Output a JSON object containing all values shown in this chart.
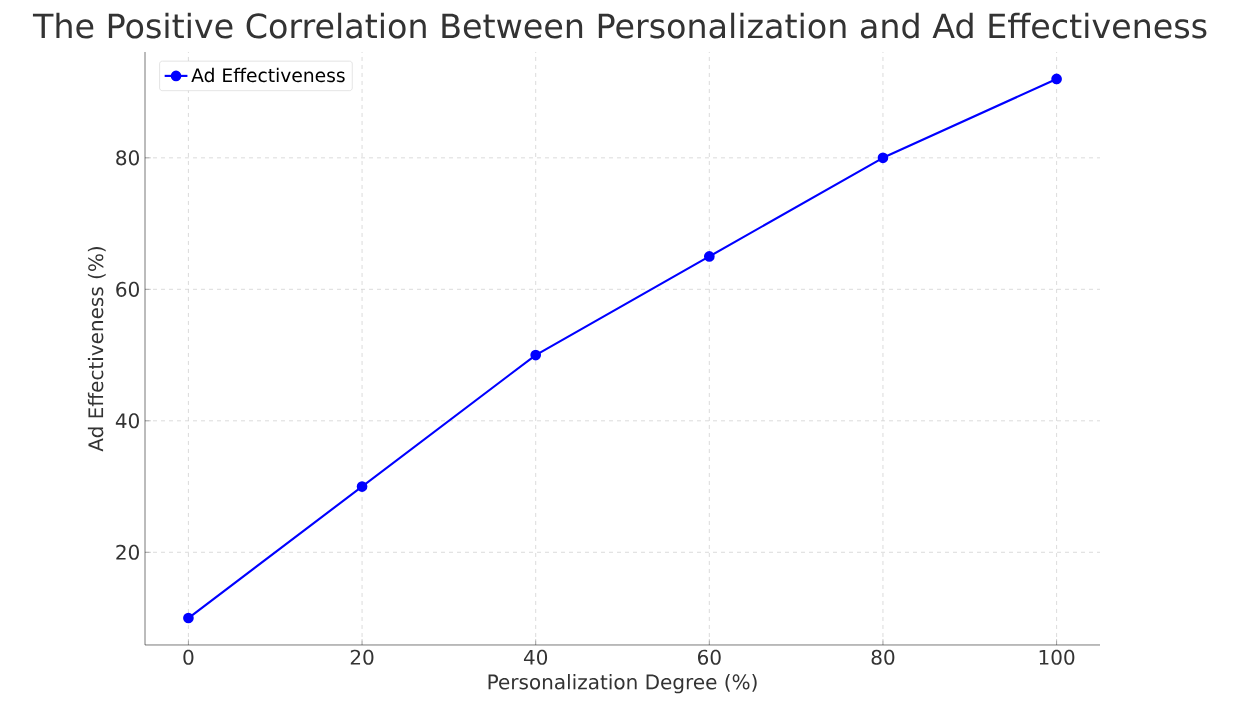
{
  "chart_data": {
    "type": "line",
    "title": "The Positive Correlation Between Personalization and Ad Effectiveness",
    "xlabel": "Personalization Degree (%)",
    "ylabel": "Ad Effectiveness (%)",
    "x": [
      0,
      20,
      40,
      60,
      80,
      100
    ],
    "series": [
      {
        "name": "Ad Effectiveness",
        "color": "#0000ff",
        "values": [
          10,
          30,
          50,
          65,
          80,
          92
        ]
      }
    ],
    "xlim": [
      -5,
      105
    ],
    "ylim": [
      5.9,
      96.1
    ],
    "xticks": [
      0,
      20,
      40,
      60,
      80,
      100
    ],
    "yticks": [
      20,
      40,
      60,
      80
    ],
    "grid": true,
    "legend": "top left",
    "marker": "circle",
    "line_style": "solid"
  }
}
